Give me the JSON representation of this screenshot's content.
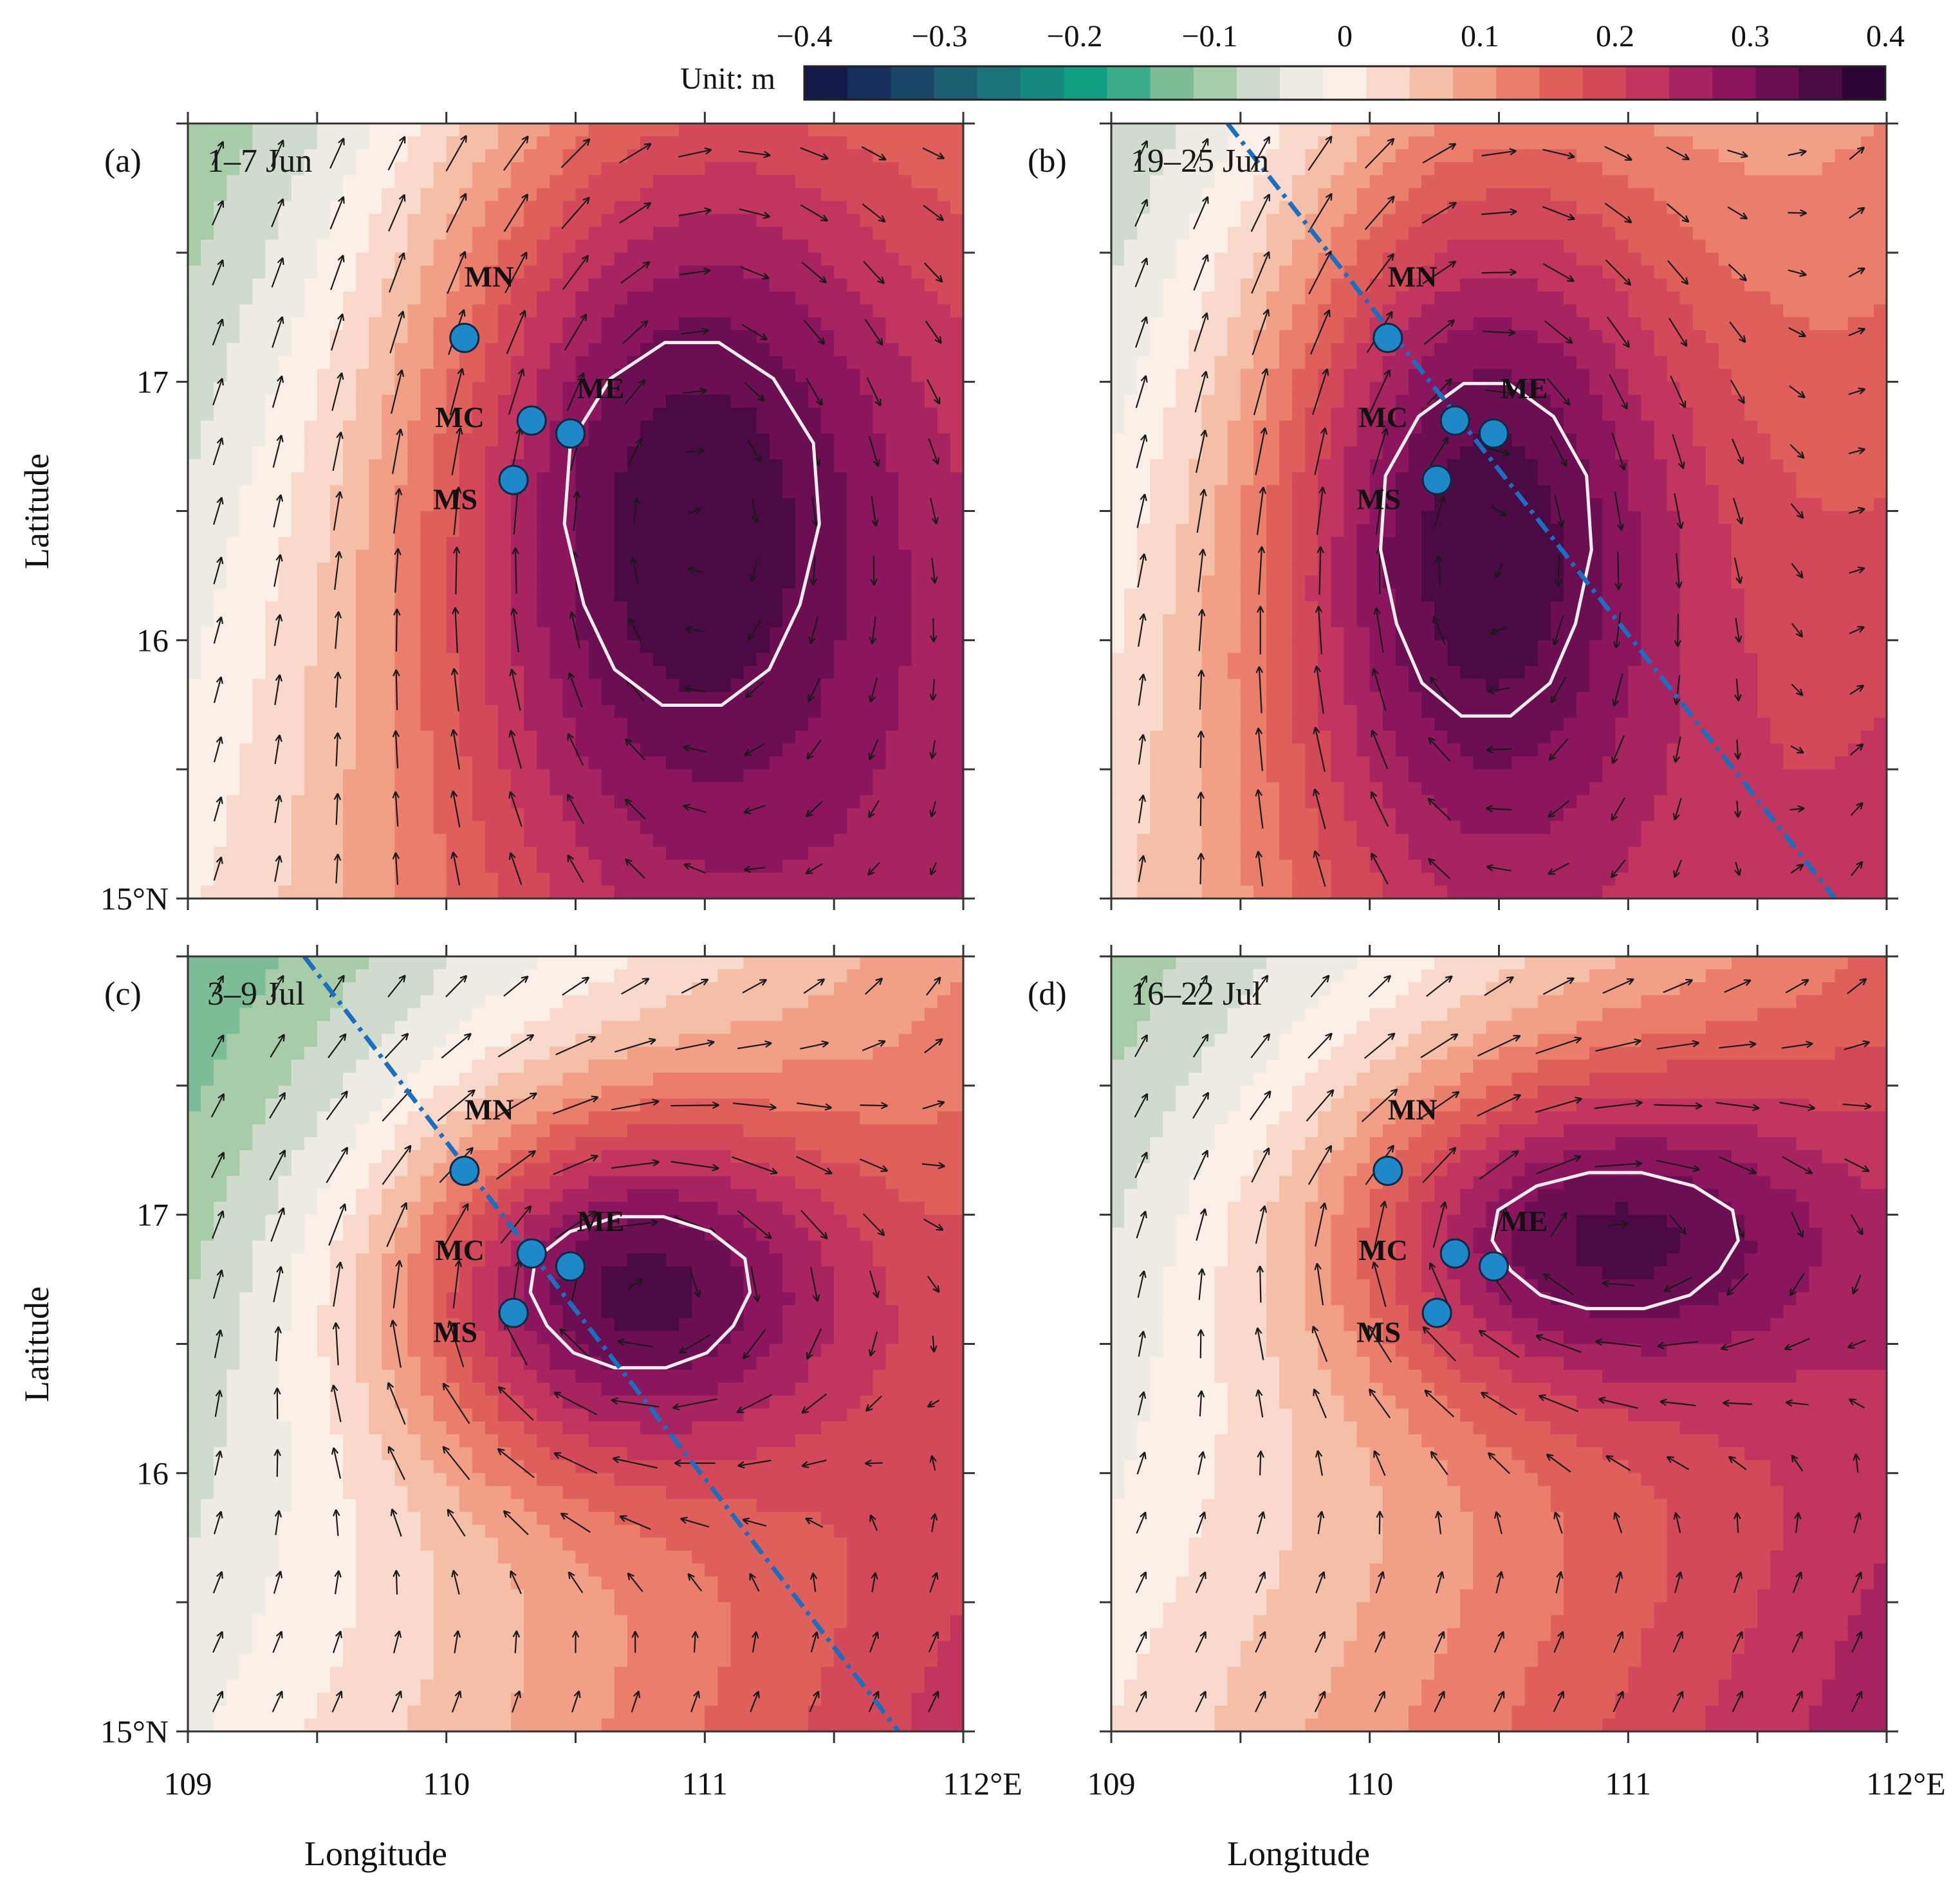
{
  "colorbar": {
    "unit_label": "Unit: m",
    "tick_labels": [
      "−0.4",
      "−0.3",
      "−0.2",
      "−0.1",
      "0",
      "0.1",
      "0.2",
      "0.3",
      "0.4"
    ],
    "range": [
      -0.4,
      0.4
    ],
    "colors": [
      "#141b48",
      "#172f5c",
      "#1a4767",
      "#1c5f73",
      "#1b7479",
      "#16897f",
      "#12a085",
      "#3cac8a",
      "#7cbc96",
      "#a9cca8",
      "#cfdccd",
      "#eeebe3",
      "#fbefe8",
      "#f8d9cb",
      "#f5bea7",
      "#f19f86",
      "#ea7e6a",
      "#df5f5a",
      "#d3495a",
      "#c1355e",
      "#a82460",
      "#8b165d",
      "#6b0f52",
      "#4b0a43",
      "#2b0634"
    ]
  },
  "axes": {
    "lon_range": [
      109,
      112
    ],
    "lat_range": [
      15,
      18
    ],
    "x_ticks": [
      "109",
      "110",
      "111",
      "112°E"
    ],
    "y_ticks": [
      "15°N",
      "16",
      "17"
    ],
    "xlabel": "Longitude",
    "ylabel": "Latitude"
  },
  "sites": [
    {
      "name": "MN",
      "lon": 110.07,
      "lat": 17.17
    },
    {
      "name": "MC",
      "lon": 110.33,
      "lat": 16.85
    },
    {
      "name": "ME",
      "lon": 110.48,
      "lat": 16.8
    },
    {
      "name": "MS",
      "lon": 110.26,
      "lat": 16.62
    }
  ],
  "panels": [
    {
      "label": "(a)",
      "period": "1–7 Jun",
      "center_lon": 110.95,
      "center_lat": 16.45,
      "peak": 0.35,
      "sx": 1.45,
      "sy": 2.4,
      "bg": 0.0,
      "grad": 0.22,
      "transect": null,
      "contour_lon": [
        111.0,
        110.8,
        110.65,
        110.55,
        110.5,
        110.5,
        110.55,
        110.65,
        110.75,
        110.9,
        111.1,
        111.3,
        111.35,
        111.35,
        111.3,
        111.2,
        111.1,
        111.0
      ]
    },
    {
      "label": "(b)",
      "period": "19–25 Jun",
      "center_lon": 110.45,
      "center_lat": 16.35,
      "peak": 0.35,
      "sx": 1.2,
      "sy": 2.2,
      "bg": 0.02,
      "grad": 0.2,
      "transect": {
        "lon1": 109.45,
        "lat1": 18.0,
        "lon2": 111.8,
        "lat2": 15.0
      }
    },
    {
      "label": "(c)",
      "period": "3–9 Jul",
      "center_lon": 110.75,
      "center_lat": 16.7,
      "peak": 0.34,
      "sx": 1.25,
      "sy": 1.0,
      "bg": -0.02,
      "grad": 0.25,
      "transect": {
        "lon1": 109.45,
        "lat1": 18.0,
        "lon2": 111.75,
        "lat2": 15.0
      }
    },
    {
      "label": "(d)",
      "period": "16–22 Jul",
      "center_lon": 110.95,
      "center_lat": 16.9,
      "peak": 0.33,
      "sx": 1.4,
      "sy": 0.9,
      "bg": 0.02,
      "grad": 0.25,
      "transect": null
    }
  ]
}
